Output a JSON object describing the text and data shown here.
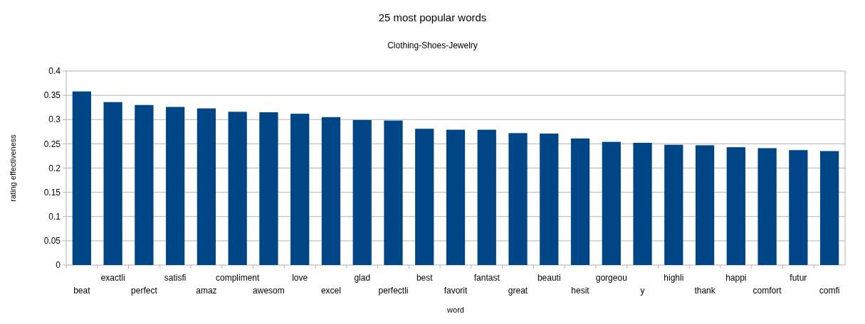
{
  "chart_data": {
    "type": "bar",
    "title": "25 most popular words",
    "subtitle": "Clothing-Shoes-Jewelry",
    "xlabel": "word",
    "ylabel": "rating effectiveness",
    "categories": [
      "beat",
      "exactli",
      "perfect",
      "satisfi",
      "amaz",
      "compliment",
      "awesom",
      "love",
      "excel",
      "glad",
      "perfectli",
      "best",
      "favorit",
      "fantast",
      "great",
      "beauti",
      "hesit",
      "gorgeou",
      "y",
      "highli",
      "thank",
      "happi",
      "comfort",
      "futur",
      "comfi"
    ],
    "values": [
      0.358,
      0.336,
      0.33,
      0.326,
      0.323,
      0.316,
      0.315,
      0.312,
      0.305,
      0.299,
      0.298,
      0.281,
      0.279,
      0.279,
      0.272,
      0.271,
      0.261,
      0.254,
      0.252,
      0.248,
      0.247,
      0.243,
      0.241,
      0.237,
      0.235
    ],
    "color": "#004586",
    "ylim": [
      0,
      0.4
    ],
    "yticks": [
      0,
      0.05,
      0.1,
      0.15,
      0.2,
      0.25,
      0.3,
      0.35,
      0.4
    ],
    "grid": "y"
  }
}
